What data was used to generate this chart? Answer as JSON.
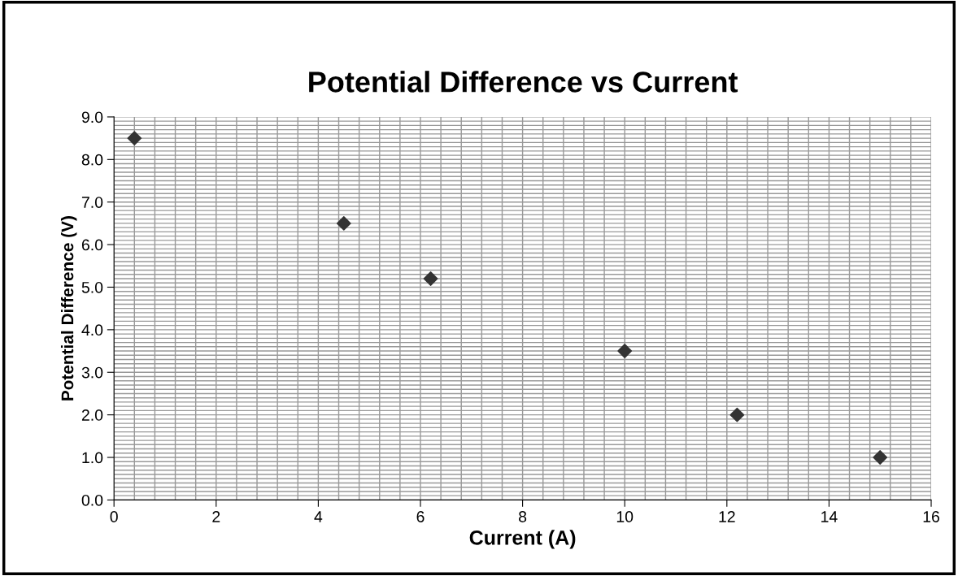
{
  "chart_data": {
    "type": "scatter",
    "title": "Potential Difference vs Current",
    "xlabel": "Current (A)",
    "ylabel": "Potential Difference (V)",
    "x": [
      0.4,
      4.5,
      6.2,
      10,
      12.2,
      15
    ],
    "series": [
      {
        "color": "#333333",
        "values": [
          8.5,
          6.5,
          5.2,
          3.5,
          2.0,
          1.0
        ]
      }
    ],
    "marker": "diamond",
    "grid": true,
    "legend": false,
    "xlim": [
      0,
      16
    ],
    "xticks": [
      0,
      2,
      4,
      6,
      8,
      10,
      12,
      14,
      16
    ],
    "ylim": [
      0,
      9
    ],
    "yticks": [
      {
        "value": 0,
        "label": "0.0"
      },
      {
        "value": 1,
        "label": "1.0"
      },
      {
        "value": 2,
        "label": "2.0"
      },
      {
        "value": 3,
        "label": "3.0"
      },
      {
        "value": 4,
        "label": "4.0"
      },
      {
        "value": 5,
        "label": "5.0"
      },
      {
        "value": 6,
        "label": "6.0"
      },
      {
        "value": 7,
        "label": "7.0"
      },
      {
        "value": 8,
        "label": "8.0"
      },
      {
        "value": 9,
        "label": "9.0"
      }
    ]
  }
}
